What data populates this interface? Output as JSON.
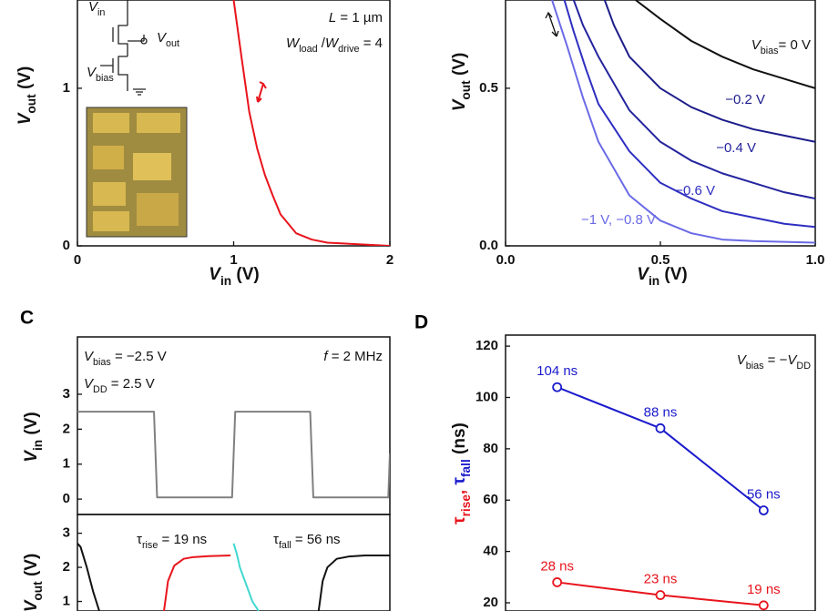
{
  "chart_data": [
    {
      "type": "line",
      "x_label": [
        {
          "text": "V"
        },
        {
          "sub": "in"
        },
        {
          "text": " (V)"
        }
      ],
      "y_label": [
        {
          "text": "V"
        },
        {
          "sub": "out"
        },
        {
          "text": " (V)"
        }
      ],
      "xlim": [
        0,
        2
      ],
      "ylim": [
        0,
        1.56
      ],
      "xticks": [
        0,
        1,
        2
      ],
      "yticks": [
        0,
        1
      ],
      "grid": false,
      "annotations": [
        [
          {
            "text": "L"
          },
          {
            "text": " = 1 µm"
          }
        ],
        [
          {
            "text": "W"
          },
          {
            "sub": "load"
          },
          {
            "text": " /"
          },
          {
            "text": "W"
          },
          {
            "sub": "drive"
          },
          {
            "text": " = 4"
          }
        ]
      ],
      "inset_labels": [
        [
          {
            "text": "V"
          },
          {
            "sub": "in"
          }
        ],
        [
          {
            "text": "V"
          },
          {
            "sub": "out"
          }
        ],
        [
          {
            "text": "V"
          },
          {
            "sub": "bias"
          }
        ]
      ],
      "series": [
        {
          "color": "#e8141c",
          "x": [
            1.0,
            1.05,
            1.1,
            1.15,
            1.2,
            1.25,
            1.3,
            1.4,
            1.5,
            1.6,
            1.8,
            2.0
          ],
          "values": [
            1.56,
            1.2,
            0.85,
            0.62,
            0.45,
            0.32,
            0.2,
            0.08,
            0.04,
            0.02,
            0.01,
            0.0
          ]
        }
      ]
    },
    {
      "type": "line",
      "x_label": [
        {
          "text": "V"
        },
        {
          "sub": "in"
        },
        {
          "text": " (V)"
        }
      ],
      "y_label": [
        {
          "text": "V"
        },
        {
          "sub": "out"
        },
        {
          "text": " (V)"
        }
      ],
      "xlim": [
        0,
        1
      ],
      "ylim": [
        0,
        0.78
      ],
      "xticks": [
        {
          "value": 0,
          "label": "0.0"
        },
        0.5,
        {
          "value": 1,
          "label": "1.0"
        }
      ],
      "yticks": [
        {
          "value": 0,
          "label": "0.0"
        },
        0.5
      ],
      "grid": false,
      "bias_prefix": [
        {
          "text": "V"
        },
        {
          "sub": "bias"
        },
        {
          "text": "= "
        }
      ],
      "series": [
        {
          "name": "0 V",
          "color": "#111111",
          "x": [
            0.42,
            0.5,
            0.6,
            0.7,
            0.8,
            0.9,
            1.0
          ],
          "values": [
            0.78,
            0.72,
            0.65,
            0.6,
            0.56,
            0.53,
            0.5
          ]
        },
        {
          "name": "−0.2 V",
          "color": "#1c1c8a",
          "x": [
            0.32,
            0.35,
            0.4,
            0.5,
            0.6,
            0.7,
            0.8,
            0.9,
            1.0
          ],
          "values": [
            0.78,
            0.7,
            0.6,
            0.5,
            0.44,
            0.4,
            0.37,
            0.35,
            0.33
          ]
        },
        {
          "name": "−0.4 V",
          "color": "#24249e",
          "x": [
            0.22,
            0.25,
            0.3,
            0.4,
            0.5,
            0.6,
            0.7,
            0.8,
            0.9,
            1.0
          ],
          "values": [
            0.78,
            0.7,
            0.6,
            0.43,
            0.33,
            0.27,
            0.23,
            0.2,
            0.17,
            0.15
          ]
        },
        {
          "name": "−0.6 V",
          "color": "#2e2ec0",
          "x": [
            0.19,
            0.22,
            0.26,
            0.3,
            0.4,
            0.5,
            0.6,
            0.7,
            0.8,
            0.9,
            1.0
          ],
          "values": [
            0.78,
            0.68,
            0.56,
            0.45,
            0.3,
            0.2,
            0.15,
            0.11,
            0.09,
            0.07,
            0.06
          ]
        },
        {
          "name": "−1 V, −0.8 V",
          "color": "#6a6ae6",
          "x": [
            0.15,
            0.2,
            0.25,
            0.3,
            0.4,
            0.5,
            0.6,
            0.7,
            0.8,
            1.0
          ],
          "values": [
            0.78,
            0.63,
            0.47,
            0.33,
            0.16,
            0.08,
            0.04,
            0.02,
            0.015,
            0.01
          ]
        }
      ]
    },
    {
      "type": "line",
      "panel_label": "C",
      "y_label": [
        {
          "text": "V"
        },
        {
          "sub": "in"
        },
        {
          "text": " (V)"
        }
      ],
      "xlim": [
        0,
        1000
      ],
      "ylim": [
        -0.44,
        4.64
      ],
      "yticks": [
        0,
        1,
        2,
        3
      ],
      "grid": false,
      "annotations": [
        [
          {
            "text": "V"
          },
          {
            "sub": "bias"
          },
          {
            "text": " = −2.5 V"
          }
        ],
        [
          {
            "text": "V"
          },
          {
            "sub": "DD"
          },
          {
            "text": " = 2.5 V"
          }
        ],
        [
          {
            "text": "f"
          },
          {
            "text": " = 2 MHz"
          }
        ]
      ],
      "series": [
        {
          "color": "#808080",
          "x": [
            0,
            245,
            255,
            495,
            505,
            745,
            755,
            995,
            1000
          ],
          "values": [
            2.5,
            2.5,
            0.05,
            0.05,
            2.5,
            2.5,
            0.05,
            0.05,
            1.3
          ]
        }
      ]
    },
    {
      "type": "line",
      "y_label": [
        {
          "text": "V"
        },
        {
          "sub": "out"
        },
        {
          "text": " (V)"
        }
      ],
      "xlim": [
        0,
        1000
      ],
      "ylim": [
        0.72,
        3.55
      ],
      "yticks": [
        1,
        2,
        3
      ],
      "grid": false,
      "annotations": [
        [
          {
            "text": "τ"
          },
          {
            "sub": "rise"
          },
          {
            "text": " = 19 ns"
          }
        ],
        [
          {
            "text": "τ"
          },
          {
            "sub": "fall"
          },
          {
            "text": " = 56 ns"
          }
        ]
      ],
      "annotation_colors": [
        "#e8141c",
        "#1a1acc"
      ],
      "series": [
        {
          "color": "#111111",
          "x": [
            0,
            10,
            30,
            50,
            70
          ],
          "values": [
            2.7,
            2.6,
            2.0,
            1.3,
            0.72
          ]
        },
        {
          "color": "#e8141c",
          "x": [
            277,
            290,
            310,
            340,
            370,
            420,
            490
          ],
          "values": [
            0.72,
            1.6,
            2.05,
            2.25,
            2.3,
            2.33,
            2.35
          ]
        },
        {
          "color": "#40d8d0",
          "x": [
            500,
            510,
            520,
            540,
            560,
            580
          ],
          "values": [
            2.7,
            2.4,
            2.0,
            1.5,
            1.0,
            0.72
          ]
        },
        {
          "color": "#111111",
          "x": [
            772,
            785,
            800,
            830,
            870,
            920,
            1000
          ],
          "values": [
            0.72,
            1.6,
            2.0,
            2.25,
            2.32,
            2.35,
            2.35
          ]
        }
      ]
    },
    {
      "type": "line",
      "panel_label": "D",
      "y_label": [
        {
          "text": "τ"
        },
        {
          "sub": "rise"
        },
        {
          "text": ", "
        },
        {
          "text": "τ"
        },
        {
          "sub": "fall"
        },
        {
          "text": " (ns)"
        }
      ],
      "y_label_colors": [
        "#e8141c",
        "#e8141c",
        "#e8141c",
        "#1a1acc",
        "#1a1acc",
        "#111111"
      ],
      "categories": [
        null,
        null,
        null
      ],
      "ylim": [
        16.8,
        124.3
      ],
      "yticks": [
        20,
        40,
        60,
        80,
        100,
        120
      ],
      "grid": false,
      "marker": "circle",
      "annotations": [
        [
          {
            "text": "V"
          },
          {
            "sub": "bias"
          },
          {
            "text": " = −"
          },
          {
            "text": "V"
          },
          {
            "sub": "DD"
          }
        ]
      ],
      "series": [
        {
          "color": "#1a1acc",
          "values": [
            104,
            88,
            56
          ],
          "value_labels": [
            "104 ns",
            "88 ns",
            "56 ns"
          ]
        },
        {
          "color": "#e8141c",
          "values": [
            28,
            23,
            19
          ],
          "value_labels": [
            "28 ns",
            "23 ns",
            "19 ns"
          ]
        }
      ]
    }
  ]
}
